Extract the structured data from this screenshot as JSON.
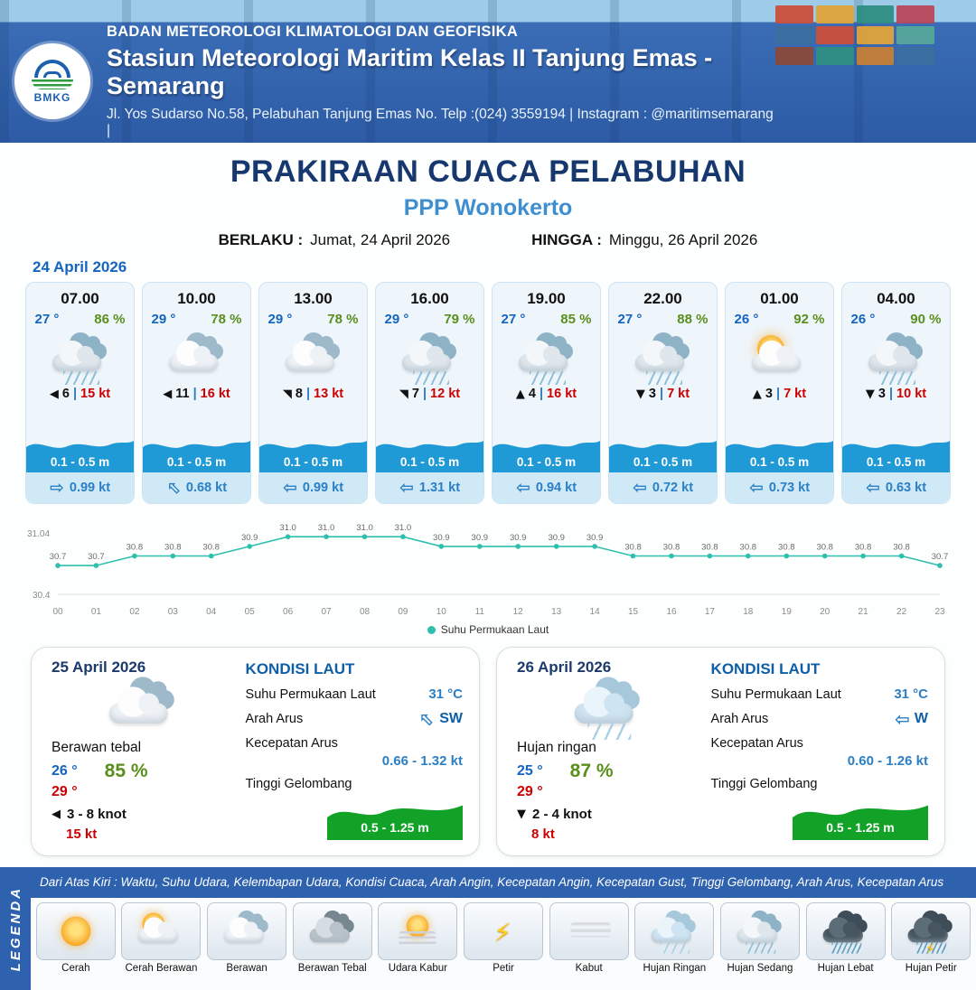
{
  "colors": {
    "header_blue": "#2f62ae",
    "title_navy": "#16386e",
    "location_blue": "#3f8ed0",
    "temp_blue": "#1565c0",
    "humidity_green": "#5a8f1e",
    "gust_red": "#cc0000",
    "wave_blue": "#1f9ad6",
    "current_blue": "#2b7fc4",
    "sea_wave_green": "#12a227",
    "chart_teal": "#2fbfae"
  },
  "header": {
    "logo_text": "BMKG",
    "agency": "BADAN METEOROLOGI KLIMATOLOGI DAN GEOFISIKA",
    "station": "Stasiun Meteorologi Maritim Kelas II Tanjung Emas - Semarang",
    "contact": "Jl. Yos Sudarso No.58, Pelabuhan Tanjung Emas No. Telp :(024) 3559194 | Instagram : @maritimsemarang |"
  },
  "title": {
    "heading": "PRAKIRAAN CUACA PELABUHAN",
    "location": "PPP Wonokerto",
    "valid_label": "BERLAKU :",
    "valid_date": "Jumat, 24 April 2026",
    "until_label": "HINGGA :",
    "until_date": "Minggu, 26 April 2026"
  },
  "forecast_date": "24 April 2026",
  "forecast_cards": [
    {
      "time": "07.00",
      "temp": "27 °",
      "humidity": "86 %",
      "icon": "rain",
      "wind_arrow": "◀",
      "wind_speed": "6",
      "separator": "|",
      "gust": "15 kt",
      "wave": "0.1 - 0.5 m",
      "current_arrow": "⇨",
      "current_rot": "rot0",
      "current_speed": "0.99 kt"
    },
    {
      "time": "10.00",
      "temp": "29 °",
      "humidity": "78 %",
      "icon": "cloudy",
      "wind_arrow": "◀",
      "wind_speed": "11",
      "separator": "|",
      "gust": "16 kt",
      "wave": "0.1 - 0.5 m",
      "current_arrow": "⇦",
      "current_rot": "rot45",
      "current_speed": "0.68 kt"
    },
    {
      "time": "13.00",
      "temp": "29 °",
      "humidity": "78 %",
      "icon": "cloudy",
      "wind_arrow": "◥",
      "wind_speed": "8",
      "separator": "|",
      "gust": "13 kt",
      "wave": "0.1 - 0.5 m",
      "current_arrow": "⇦",
      "current_rot": "rot0",
      "current_speed": "0.99 kt"
    },
    {
      "time": "16.00",
      "temp": "29 °",
      "humidity": "79 %",
      "icon": "rain",
      "wind_arrow": "◥",
      "wind_speed": "7",
      "separator": "|",
      "gust": "12 kt",
      "wave": "0.1 - 0.5 m",
      "current_arrow": "⇦",
      "current_rot": "rot0",
      "current_speed": "1.31 kt"
    },
    {
      "time": "19.00",
      "temp": "27 °",
      "humidity": "85 %",
      "icon": "rain",
      "wind_arrow": "▲",
      "wind_speed": "4",
      "separator": "|",
      "gust": "16 kt",
      "wave": "0.1 - 0.5 m",
      "current_arrow": "⇦",
      "current_rot": "rot0",
      "current_speed": "0.94 kt"
    },
    {
      "time": "22.00",
      "temp": "27 °",
      "humidity": "88 %",
      "icon": "rain",
      "wind_arrow": "▼",
      "wind_speed": "3",
      "separator": "|",
      "gust": "7 kt",
      "wave": "0.1 - 0.5 m",
      "current_arrow": "⇦",
      "current_rot": "rot0",
      "current_speed": "0.72 kt"
    },
    {
      "time": "01.00",
      "temp": "26 °",
      "humidity": "92 %",
      "icon": "sun-cloud",
      "wind_arrow": "▲",
      "wind_speed": "3",
      "separator": "|",
      "gust": "7 kt",
      "wave": "0.1 - 0.5 m",
      "current_arrow": "⇦",
      "current_rot": "rot0",
      "current_speed": "0.73 kt"
    },
    {
      "time": "04.00",
      "temp": "26 °",
      "humidity": "90 %",
      "icon": "rain",
      "wind_arrow": "▼",
      "wind_speed": "3",
      "separator": "|",
      "gust": "10 kt",
      "wave": "0.1 - 0.5 m",
      "current_arrow": "⇦",
      "current_rot": "rot0",
      "current_speed": "0.63 kt"
    }
  ],
  "chart_data": {
    "type": "line",
    "x": [
      "00",
      "01",
      "02",
      "03",
      "04",
      "05",
      "06",
      "07",
      "08",
      "09",
      "10",
      "11",
      "12",
      "13",
      "14",
      "15",
      "16",
      "17",
      "18",
      "19",
      "20",
      "21",
      "22",
      "23"
    ],
    "series": [
      {
        "name": "Suhu Permukaan Laut",
        "values": [
          30.7,
          30.7,
          30.8,
          30.8,
          30.8,
          30.9,
          31.0,
          31.0,
          31.0,
          31.0,
          30.9,
          30.9,
          30.9,
          30.9,
          30.9,
          30.8,
          30.8,
          30.8,
          30.8,
          30.8,
          30.8,
          30.8,
          30.8,
          30.7
        ]
      }
    ],
    "ylim": [
      30.4,
      31.04
    ],
    "line_color": "#2fbfae",
    "legend_position": "bottom",
    "grid": false,
    "title": "",
    "xlabel": "",
    "ylabel": ""
  },
  "daily_cards": [
    {
      "date": "25 April 2026",
      "icon": "cloudy",
      "condition": "Berawan tebal",
      "temp_min": "26 °",
      "temp_max": "29 °",
      "humidity": "85 %",
      "wind_arrow": "◀",
      "wind_range": "3 - 8 knot",
      "gust": "15 kt",
      "sea": {
        "heading": "KONDISI LAUT",
        "sst_label": "Suhu Permukaan Laut",
        "sst": "31 °C",
        "current_dir_label": "Arah Arus",
        "current_arrow": "⇦",
        "current_rot": "rot45",
        "current_dir": "SW",
        "current_speed_label": "Kecepatan Arus",
        "current_speed": "0.66 - 1.32 kt",
        "wave_label": "Tinggi Gelombang",
        "wave": "0.5 - 1.25 m"
      }
    },
    {
      "date": "26 April 2026",
      "icon": "rain-light",
      "condition": "Hujan ringan",
      "temp_min": "25 °",
      "temp_max": "29 °",
      "humidity": "87 %",
      "wind_arrow": "▼",
      "wind_range": "2 - 4 knot",
      "gust": "8 kt",
      "sea": {
        "heading": "KONDISI LAUT",
        "sst_label": "Suhu Permukaan Laut",
        "sst": "31 °C",
        "current_dir_label": "Arah Arus",
        "current_arrow": "⇦",
        "current_rot": "rot0",
        "current_dir": "W",
        "current_speed_label": "Kecepatan Arus",
        "current_speed": "0.60 - 1.26 kt",
        "wave_label": "Tinggi Gelombang",
        "wave": "0.5 - 1.25 m"
      }
    }
  ],
  "legend": {
    "sidebar": "LEGENDA",
    "note": "Dari Atas Kiri : Waktu, Suhu Udara, Kelembapan Udara, Kondisi Cuaca, Arah Angin, Kecepatan Angin, Kecepatan Gust, Tinggi Gelombang, Arah Arus, Kecepatan Arus",
    "items": [
      {
        "label": "Cerah",
        "icon": "sunny"
      },
      {
        "label": "Cerah Berawan",
        "icon": "sun-cloud"
      },
      {
        "label": "Berawan",
        "icon": "cloudy"
      },
      {
        "label": "Berawan Tebal",
        "icon": "cloudy-dark"
      },
      {
        "label": "Udara Kabur",
        "icon": "haze"
      },
      {
        "label": "Petir",
        "icon": "thunder"
      },
      {
        "label": "Kabut",
        "icon": "fog"
      },
      {
        "label": "Hujan Ringan",
        "icon": "rain-light"
      },
      {
        "label": "Hujan Sedang",
        "icon": "rain"
      },
      {
        "label": "Hujan Lebat",
        "icon": "rain-heavy"
      },
      {
        "label": "Hujan Petir",
        "icon": "rain-thunder"
      }
    ]
  }
}
